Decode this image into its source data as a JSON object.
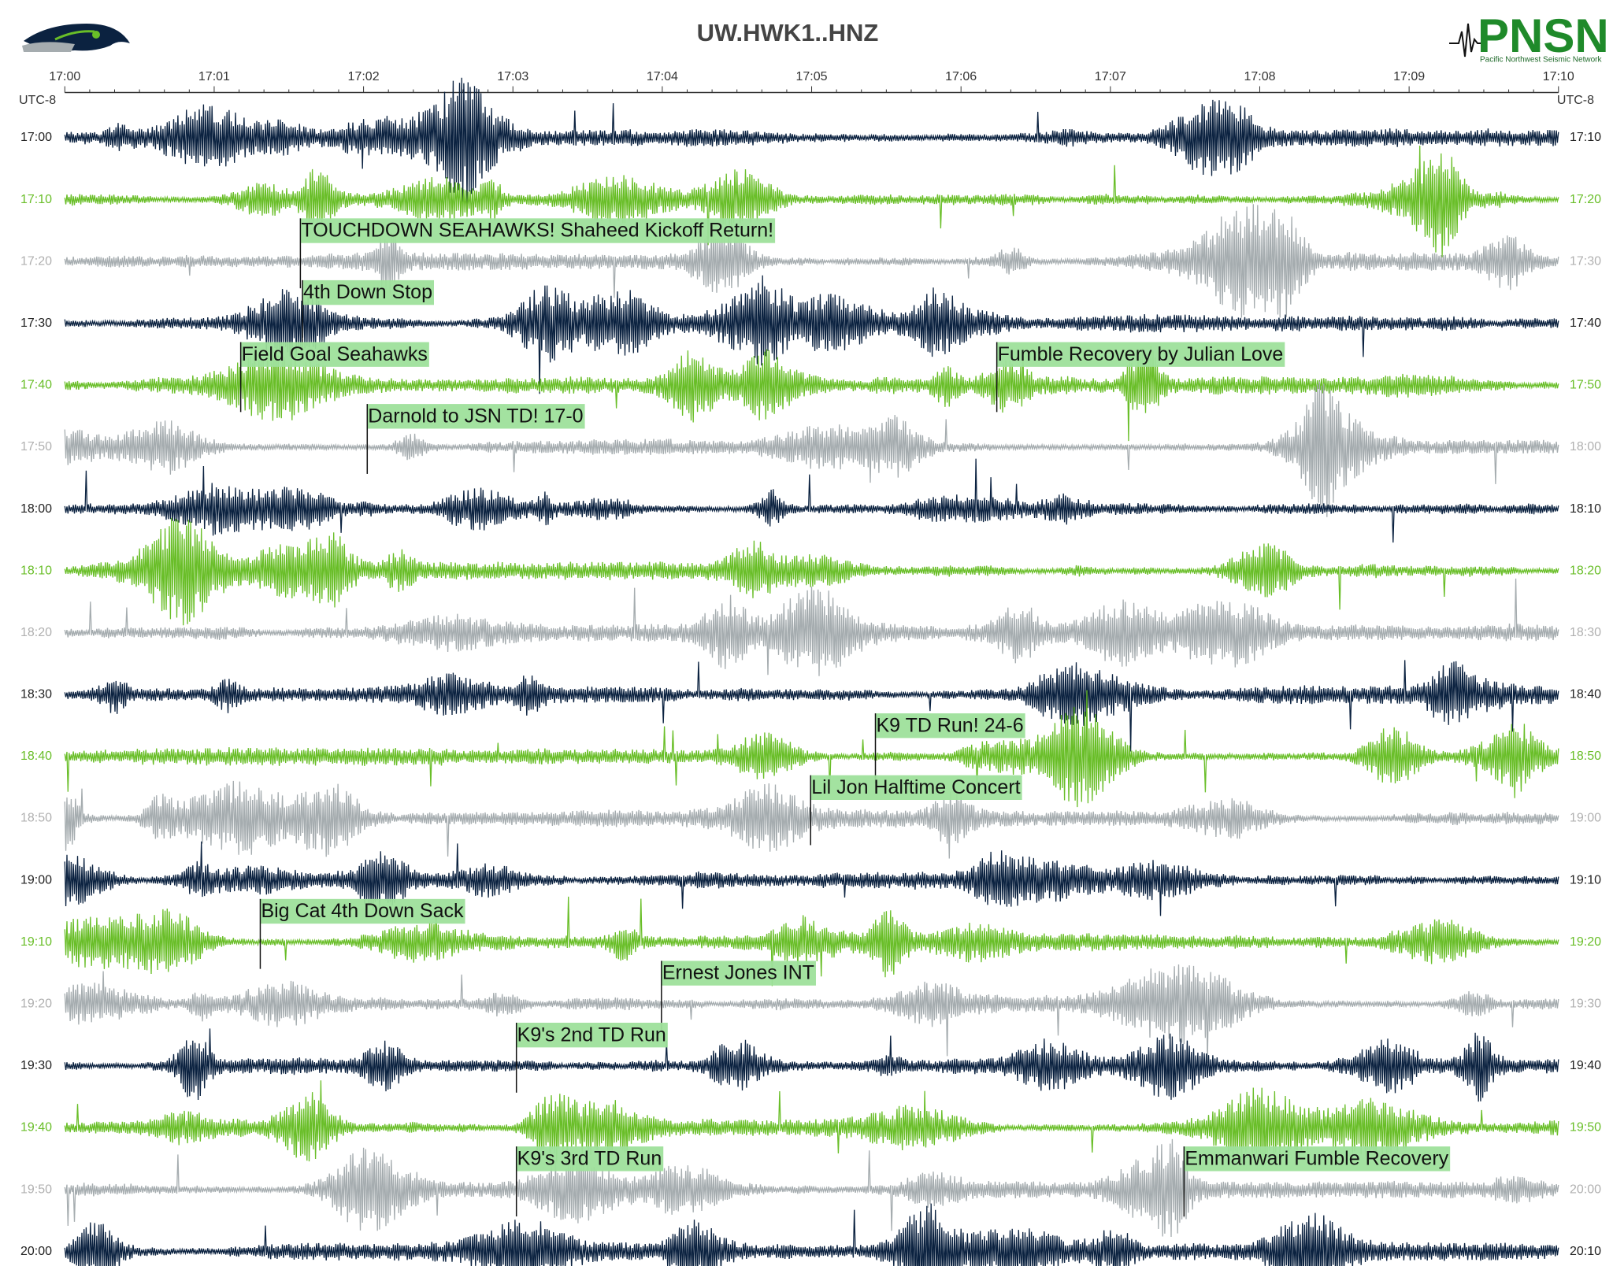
{
  "header": {
    "title": "UW.HWK1..HNZ",
    "logo_text": "PNSN",
    "logo_subtitle": "Pacific Northwest Seismic Network"
  },
  "time_axis": {
    "timezone_left": "UTC-8",
    "timezone_right": "UTC-8",
    "ticks": [
      "17:00",
      "17:01",
      "17:02",
      "17:03",
      "17:04",
      "17:05",
      "17:06",
      "17:07",
      "17:08",
      "17:09",
      "17:10"
    ]
  },
  "rows": [
    {
      "left": "17:00",
      "right": "17:10"
    },
    {
      "left": "17:10",
      "right": "17:20"
    },
    {
      "left": "17:20",
      "right": "17:30"
    },
    {
      "left": "17:30",
      "right": "17:40"
    },
    {
      "left": "17:40",
      "right": "17:50"
    },
    {
      "left": "17:50",
      "right": "18:00"
    },
    {
      "left": "18:00",
      "right": "18:10"
    },
    {
      "left": "18:10",
      "right": "18:20"
    },
    {
      "left": "18:20",
      "right": "18:30"
    },
    {
      "left": "18:30",
      "right": "18:40"
    },
    {
      "left": "18:40",
      "right": "18:50"
    },
    {
      "left": "18:50",
      "right": "19:00"
    },
    {
      "left": "19:00",
      "right": "19:10"
    },
    {
      "left": "19:10",
      "right": "19:20"
    },
    {
      "left": "19:20",
      "right": "19:30"
    },
    {
      "left": "19:30",
      "right": "19:40"
    },
    {
      "left": "19:40",
      "right": "19:50"
    },
    {
      "left": "19:50",
      "right": "20:00"
    },
    {
      "left": "20:00",
      "right": "20:10"
    }
  ],
  "annotations": [
    {
      "text": "TOUCHDOWN SEAHAWKS! Shaheed Kickoff Return!"
    },
    {
      "text": "4th Down Stop"
    },
    {
      "text": "Field Goal Seahawks"
    },
    {
      "text": "Fumble Recovery by Julian Love"
    },
    {
      "text": "Darnold to JSN TD! 17-0"
    },
    {
      "text": "K9 TD Run! 24-6"
    },
    {
      "text": "Lil Jon Halftime Concert"
    },
    {
      "text": "Big Cat 4th Down Sack"
    },
    {
      "text": "Ernest Jones INT"
    },
    {
      "text": "K9's 2nd TD Run"
    },
    {
      "text": "K9's 3rd TD Run"
    },
    {
      "text": "Emmanwari Fumble Recovery"
    }
  ]
}
